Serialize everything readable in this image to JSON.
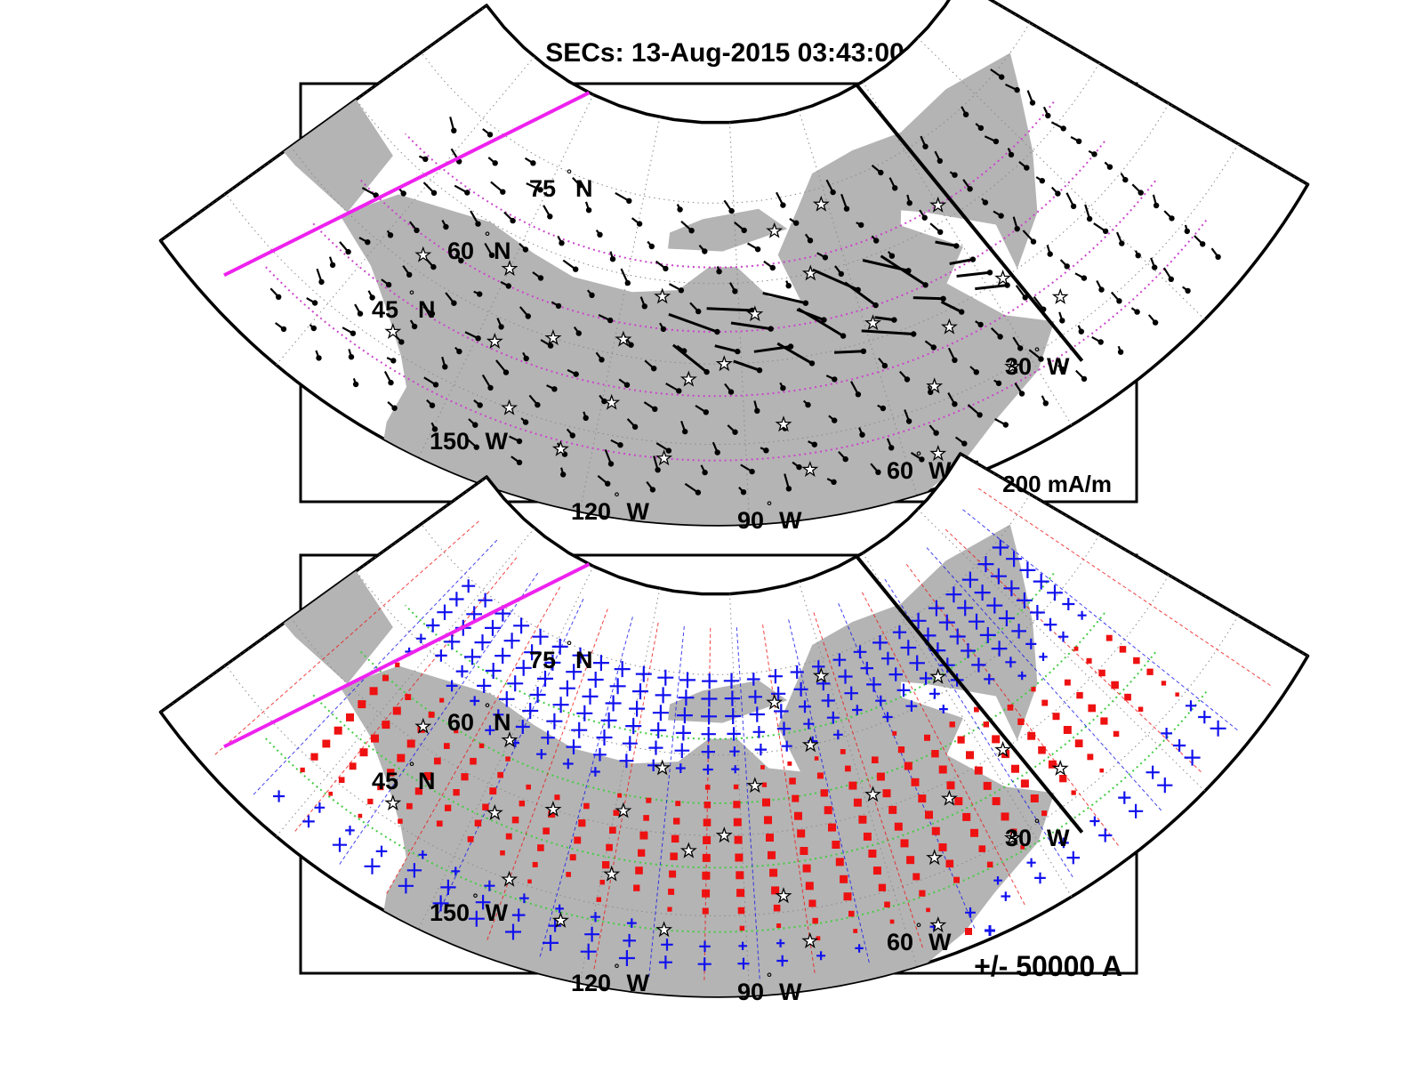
{
  "title": "SECs: 13-Aug-2015 03:43:00",
  "colors": {
    "land": "#b4b4b4",
    "frame": "#000000",
    "boundary_line": "#ee22ee",
    "latitude_circle_top": "#cc44cc",
    "latitude_circle_bottom": "#44cc44",
    "positive_current": "#ee1111",
    "negative_current": "#1111ee",
    "vector": "#000000"
  },
  "icons": {
    "station": "star-icon",
    "sec_point": "dot-icon"
  },
  "projection": {
    "type": "polar-sector",
    "lon_range_deg_west": [
      30,
      150
    ],
    "lat_range_deg_north": [
      40,
      90
    ]
  },
  "labels": {
    "lat": [
      {
        "value": "75",
        "unit": "N"
      },
      {
        "value": "60",
        "unit": "N"
      },
      {
        "value": "45",
        "unit": "N"
      }
    ],
    "lon": [
      {
        "value": "150",
        "unit": "W"
      },
      {
        "value": "120",
        "unit": "W"
      },
      {
        "value": "90",
        "unit": "W"
      },
      {
        "value": "60",
        "unit": "W"
      },
      {
        "value": "30",
        "unit": "W"
      }
    ]
  },
  "panels": [
    {
      "id": "vector",
      "scale_label": "200 mA/m"
    },
    {
      "id": "amplitude",
      "scale_label": "+/- 50000 A"
    }
  ]
}
